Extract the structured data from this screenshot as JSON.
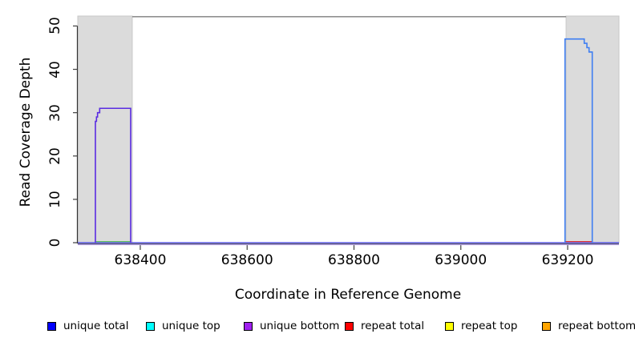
{
  "figure": {
    "x_axis_title": "Coordinate in Reference Genome",
    "y_axis_title": "Read Coverage Depth",
    "background_color": "#ffffff"
  },
  "legend": {
    "items": [
      {
        "id": "unique-total",
        "label": "unique total",
        "color": "#0000FF"
      },
      {
        "id": "unique-top",
        "label": "unique top",
        "color": "#00FFFF"
      },
      {
        "id": "unique-bottom",
        "label": "unique bottom",
        "color": "#A020F0"
      },
      {
        "id": "repeat-total",
        "label": "repeat total",
        "color": "#FF0000"
      },
      {
        "id": "repeat-top",
        "label": "repeat top",
        "color": "#FFFF00"
      },
      {
        "id": "repeat-bottom",
        "label": "repeat bottom",
        "color": "#FFA500"
      }
    ]
  },
  "chart_data": {
    "type": "line",
    "title": "",
    "xlabel": "Coordinate in Reference Genome",
    "ylabel": "Read Coverage Depth",
    "xlim": [
      638283,
      639296
    ],
    "ylim": [
      0,
      52.3
    ],
    "x_ticks": [
      638400,
      638600,
      638800,
      639000,
      639200
    ],
    "y_ticks": [
      0,
      10,
      20,
      30,
      40,
      50
    ],
    "grid": false,
    "legend_position": "bottom",
    "shaded_regions": [
      {
        "x0": 638283,
        "x1": 638385,
        "fill": "#DBDBDB",
        "edge": "#C8C8C8"
      },
      {
        "x0": 639197,
        "x1": 639296,
        "fill": "#DBDBDB",
        "edge": "#C8C8C8"
      }
    ],
    "series": [
      {
        "name": "baseline-unique-bottom-fringe",
        "color": "#BCA8F2",
        "width": 1.3,
        "points": [
          [
            638283,
            -0.45
          ],
          [
            639296,
            -0.45
          ]
        ]
      },
      {
        "name": "baseline-unique-total",
        "color": "#4040E8",
        "width": 1.3,
        "points": [
          [
            638283,
            0
          ],
          [
            639296,
            0
          ]
        ]
      },
      {
        "name": "baseline-green-segment-left-region",
        "color": "#52BE52",
        "width": 1.1,
        "points": [
          [
            638317,
            0.25
          ],
          [
            638382,
            0.25
          ]
        ]
      },
      {
        "name": "baseline-red-segment-right-region",
        "color": "#E23535",
        "width": 1.2,
        "points": [
          [
            639195,
            0.25
          ],
          [
            639247,
            0.25
          ]
        ]
      },
      {
        "name": "clipped-coverage-top-line",
        "color": "#909090",
        "width": 1.6,
        "points": [
          [
            638385,
            52.15
          ],
          [
            639197,
            52.15
          ]
        ]
      },
      {
        "name": "unique-coverage-left-peak",
        "color": "#5A2CE2",
        "width": 1.6,
        "points": [
          [
            638316,
            0
          ],
          [
            638316,
            28
          ],
          [
            638318,
            28
          ],
          [
            638318,
            29
          ],
          [
            638320,
            29
          ],
          [
            638320,
            30
          ],
          [
            638324,
            30
          ],
          [
            638324,
            31
          ],
          [
            638382,
            31
          ],
          [
            638382,
            0
          ]
        ]
      },
      {
        "name": "unique-coverage-right-peak",
        "color": "#3E7EF2",
        "width": 1.6,
        "points": [
          [
            639195,
            0
          ],
          [
            639195,
            47
          ],
          [
            639231,
            47
          ],
          [
            639231,
            46
          ],
          [
            639236,
            46
          ],
          [
            639236,
            45
          ],
          [
            639240,
            45
          ],
          [
            639240,
            44
          ],
          [
            639246,
            44
          ],
          [
            639246,
            0
          ]
        ]
      }
    ],
    "left_peak_max_depth": 31,
    "right_peak_max_depth": 47
  }
}
